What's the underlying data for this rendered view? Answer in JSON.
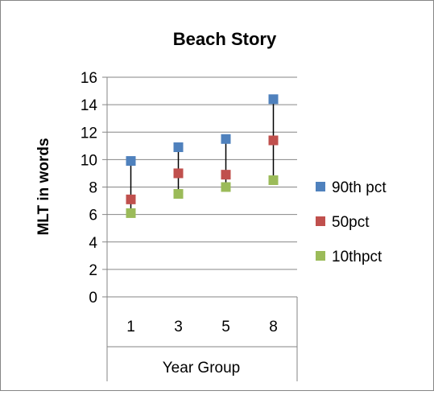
{
  "chart_data": {
    "type": "scatter",
    "title": "Beach Story",
    "xlabel": "Year Group",
    "ylabel": "MLT in words",
    "categories": [
      "1",
      "3",
      "5",
      "8"
    ],
    "ylim": [
      0,
      16
    ],
    "yticks": [
      0,
      2,
      4,
      6,
      8,
      10,
      12,
      14,
      16
    ],
    "grid": true,
    "legend_position": "right",
    "series": [
      {
        "name": "90th pct",
        "color": "#4f81bd",
        "values": [
          9.9,
          10.9,
          11.5,
          14.4
        ]
      },
      {
        "name": "50pct",
        "color": "#c0504d",
        "values": [
          7.1,
          9.0,
          8.9,
          11.4
        ]
      },
      {
        "name": "10thpct",
        "color": "#9bbb59",
        "values": [
          6.1,
          7.5,
          8.0,
          8.5
        ]
      }
    ],
    "connector": "high-low line"
  }
}
